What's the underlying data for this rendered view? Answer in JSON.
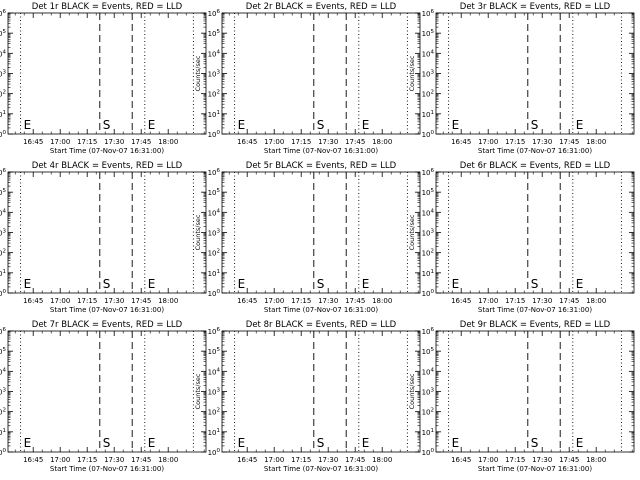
{
  "figure": {
    "background": "#ffffff",
    "axis_color": "#000000"
  },
  "chart_data": [
    {
      "type": "line",
      "title": "Det 1r BLACK = Events, RED = LLD",
      "xlabel": "Start Time (07-Nov-07 16:31:00)",
      "ylabel": "Counts/sec",
      "x_tick_labels": [
        "16:45",
        "17:00",
        "17:15",
        "17:30",
        "17:45",
        "18:00"
      ],
      "y_tick_labels": [
        "10^0",
        "10^1",
        "10^2",
        "10^3",
        "10^4",
        "10^5",
        "10^6"
      ],
      "ylim": [
        1,
        1000000
      ],
      "y_scale": "log",
      "series": [],
      "markers": [
        {
          "x": "16:38",
          "style": "dotted",
          "label": "E"
        },
        {
          "x": "17:22",
          "style": "dashed",
          "label": "S"
        },
        {
          "x": "17:40",
          "style": "dashed",
          "label": ""
        },
        {
          "x": "17:47",
          "style": "dotted",
          "label": "E"
        },
        {
          "x": "18:14",
          "style": "dotted",
          "label": ""
        }
      ]
    },
    {
      "type": "line",
      "title": "Det 2r BLACK = Events, RED = LLD",
      "xlabel": "Start Time (07-Nov-07 16:31:00)",
      "ylabel": "Counts/sec",
      "x_tick_labels": [
        "16:45",
        "17:00",
        "17:15",
        "17:30",
        "17:45",
        "18:00"
      ],
      "y_tick_labels": [
        "10^0",
        "10^1",
        "10^2",
        "10^3",
        "10^4",
        "10^5",
        "10^6"
      ],
      "ylim": [
        1,
        1000000
      ],
      "y_scale": "log",
      "series": [],
      "markers": [
        {
          "x": "16:38",
          "style": "dotted",
          "label": "E"
        },
        {
          "x": "17:22",
          "style": "dashed",
          "label": "S"
        },
        {
          "x": "17:40",
          "style": "dashed",
          "label": ""
        },
        {
          "x": "17:47",
          "style": "dotted",
          "label": "E"
        },
        {
          "x": "18:14",
          "style": "dotted",
          "label": ""
        }
      ]
    },
    {
      "type": "line",
      "title": "Det 3r BLACK = Events, RED = LLD",
      "xlabel": "Start Time (07-Nov-07 16:31:00)",
      "ylabel": "Counts/sec",
      "x_tick_labels": [
        "16:45",
        "17:00",
        "17:15",
        "17:30",
        "17:45",
        "18:00"
      ],
      "y_tick_labels": [
        "10^0",
        "10^1",
        "10^2",
        "10^3",
        "10^4",
        "10^5",
        "10^6"
      ],
      "ylim": [
        1,
        1000000
      ],
      "y_scale": "log",
      "series": [],
      "markers": [
        {
          "x": "16:38",
          "style": "dotted",
          "label": "E"
        },
        {
          "x": "17:22",
          "style": "dashed",
          "label": "S"
        },
        {
          "x": "17:40",
          "style": "dashed",
          "label": ""
        },
        {
          "x": "17:47",
          "style": "dotted",
          "label": "E"
        },
        {
          "x": "18:14",
          "style": "dotted",
          "label": ""
        }
      ]
    },
    {
      "type": "line",
      "title": "Det 4r BLACK = Events, RED = LLD",
      "xlabel": "Start Time (07-Nov-07 16:31:00)",
      "ylabel": "Counts/sec",
      "x_tick_labels": [
        "16:45",
        "17:00",
        "17:15",
        "17:30",
        "17:45",
        "18:00"
      ],
      "y_tick_labels": [
        "10^0",
        "10^1",
        "10^2",
        "10^3",
        "10^4",
        "10^5",
        "10^6"
      ],
      "ylim": [
        1,
        1000000
      ],
      "y_scale": "log",
      "series": [],
      "markers": [
        {
          "x": "16:38",
          "style": "dotted",
          "label": "E"
        },
        {
          "x": "17:22",
          "style": "dashed",
          "label": "S"
        },
        {
          "x": "17:40",
          "style": "dashed",
          "label": ""
        },
        {
          "x": "17:47",
          "style": "dotted",
          "label": "E"
        },
        {
          "x": "18:14",
          "style": "dotted",
          "label": ""
        }
      ]
    },
    {
      "type": "line",
      "title": "Det 5r BLACK = Events, RED = LLD",
      "xlabel": "Start Time (07-Nov-07 16:31:00)",
      "ylabel": "Counts/sec",
      "x_tick_labels": [
        "16:45",
        "17:00",
        "17:15",
        "17:30",
        "17:45",
        "18:00"
      ],
      "y_tick_labels": [
        "10^0",
        "10^1",
        "10^2",
        "10^3",
        "10^4",
        "10^5",
        "10^6"
      ],
      "ylim": [
        1,
        1000000
      ],
      "y_scale": "log",
      "series": [],
      "markers": [
        {
          "x": "16:38",
          "style": "dotted",
          "label": "E"
        },
        {
          "x": "17:22",
          "style": "dashed",
          "label": "S"
        },
        {
          "x": "17:40",
          "style": "dashed",
          "label": ""
        },
        {
          "x": "17:47",
          "style": "dotted",
          "label": "E"
        },
        {
          "x": "18:14",
          "style": "dotted",
          "label": ""
        }
      ]
    },
    {
      "type": "line",
      "title": "Det 6r BLACK = Events, RED = LLD",
      "xlabel": "Start Time (07-Nov-07 16:31:00)",
      "ylabel": "Counts/sec",
      "x_tick_labels": [
        "16:45",
        "17:00",
        "17:15",
        "17:30",
        "17:45",
        "18:00"
      ],
      "y_tick_labels": [
        "10^0",
        "10^1",
        "10^2",
        "10^3",
        "10^4",
        "10^5",
        "10^6"
      ],
      "ylim": [
        1,
        1000000
      ],
      "y_scale": "log",
      "series": [],
      "markers": [
        {
          "x": "16:38",
          "style": "dotted",
          "label": "E"
        },
        {
          "x": "17:22",
          "style": "dashed",
          "label": "S"
        },
        {
          "x": "17:40",
          "style": "dashed",
          "label": ""
        },
        {
          "x": "17:47",
          "style": "dotted",
          "label": "E"
        },
        {
          "x": "18:14",
          "style": "dotted",
          "label": ""
        }
      ]
    },
    {
      "type": "line",
      "title": "Det 7r BLACK = Events, RED = LLD",
      "xlabel": "Start Time (07-Nov-07 16:31:00)",
      "ylabel": "Counts/sec",
      "x_tick_labels": [
        "16:45",
        "17:00",
        "17:15",
        "17:30",
        "17:45",
        "18:00"
      ],
      "y_tick_labels": [
        "10^0",
        "10^1",
        "10^2",
        "10^3",
        "10^4",
        "10^5",
        "10^6"
      ],
      "ylim": [
        1,
        1000000
      ],
      "y_scale": "log",
      "series": [],
      "markers": [
        {
          "x": "16:38",
          "style": "dotted",
          "label": "E"
        },
        {
          "x": "17:22",
          "style": "dashed",
          "label": "S"
        },
        {
          "x": "17:40",
          "style": "dashed",
          "label": ""
        },
        {
          "x": "17:47",
          "style": "dotted",
          "label": "E"
        },
        {
          "x": "18:14",
          "style": "dotted",
          "label": ""
        }
      ]
    },
    {
      "type": "line",
      "title": "Det 8r BLACK = Events, RED = LLD",
      "xlabel": "Start Time (07-Nov-07 16:31:00)",
      "ylabel": "Counts/sec",
      "x_tick_labels": [
        "16:45",
        "17:00",
        "17:15",
        "17:30",
        "17:45",
        "18:00"
      ],
      "y_tick_labels": [
        "10^0",
        "10^1",
        "10^2",
        "10^3",
        "10^4",
        "10^5",
        "10^6"
      ],
      "ylim": [
        1,
        1000000
      ],
      "y_scale": "log",
      "series": [],
      "markers": [
        {
          "x": "16:38",
          "style": "dotted",
          "label": "E"
        },
        {
          "x": "17:22",
          "style": "dashed",
          "label": "S"
        },
        {
          "x": "17:40",
          "style": "dashed",
          "label": ""
        },
        {
          "x": "17:47",
          "style": "dotted",
          "label": "E"
        },
        {
          "x": "18:14",
          "style": "dotted",
          "label": ""
        }
      ]
    },
    {
      "type": "line",
      "title": "Det 9r BLACK = Events, RED = LLD",
      "xlabel": "Start Time (07-Nov-07 16:31:00)",
      "ylabel": "Counts/sec",
      "x_tick_labels": [
        "16:45",
        "17:00",
        "17:15",
        "17:30",
        "17:45",
        "18:00"
      ],
      "y_tick_labels": [
        "10^0",
        "10^1",
        "10^2",
        "10^3",
        "10^4",
        "10^5",
        "10^6"
      ],
      "ylim": [
        1,
        1000000
      ],
      "y_scale": "log",
      "series": [],
      "markers": [
        {
          "x": "16:38",
          "style": "dotted",
          "label": "E"
        },
        {
          "x": "17:22",
          "style": "dashed",
          "label": "S"
        },
        {
          "x": "17:40",
          "style": "dashed",
          "label": ""
        },
        {
          "x": "17:47",
          "style": "dotted",
          "label": "E"
        },
        {
          "x": "18:14",
          "style": "dotted",
          "label": ""
        }
      ]
    }
  ]
}
